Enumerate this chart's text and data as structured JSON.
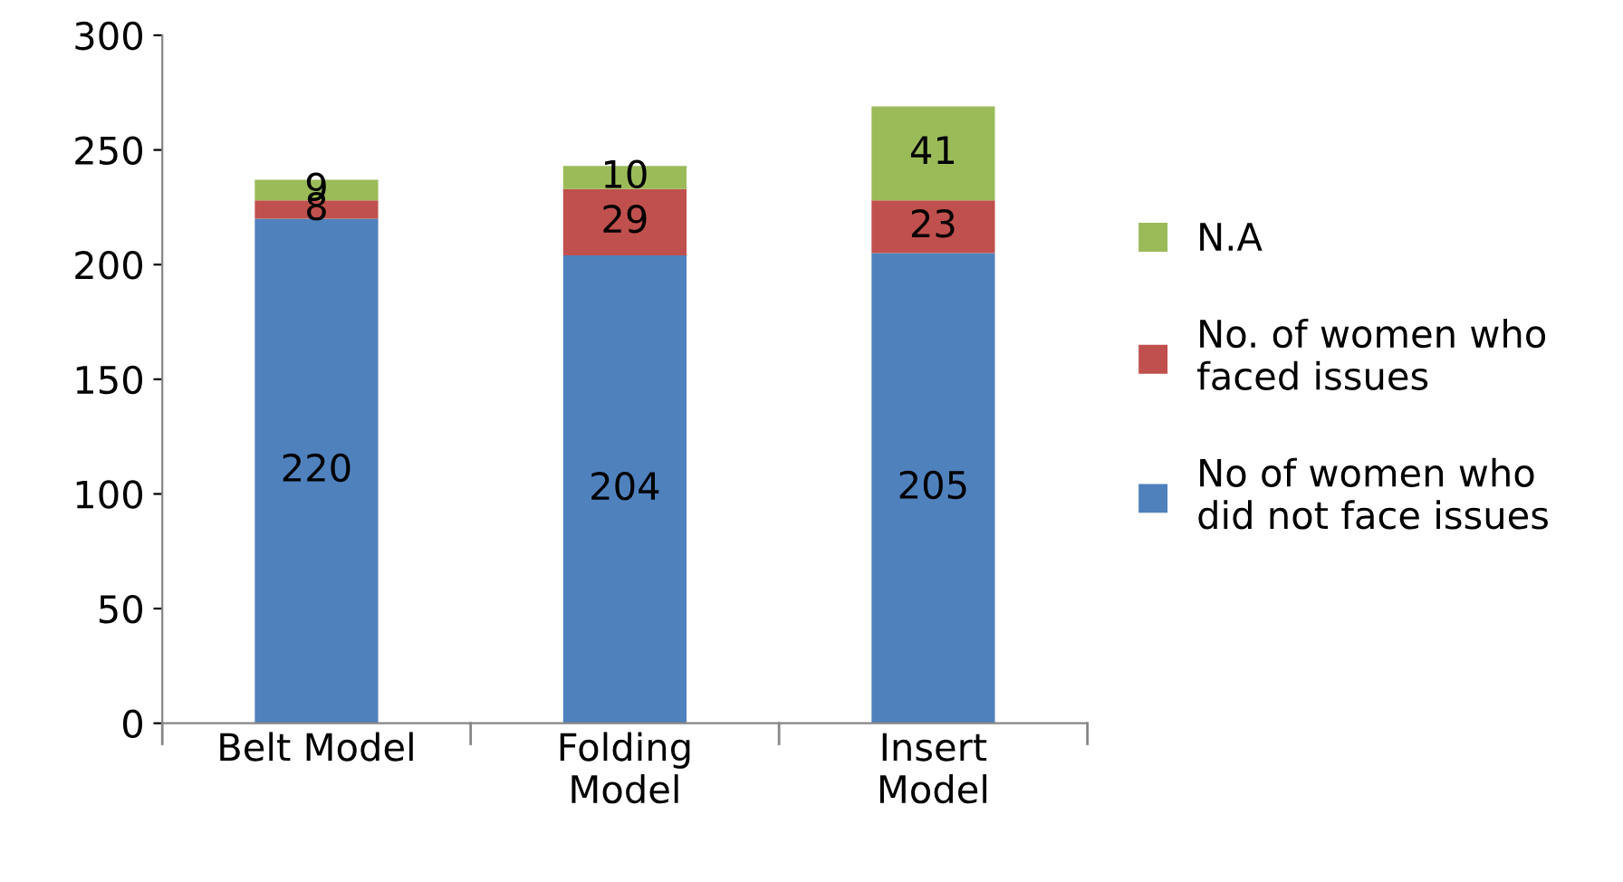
{
  "chart_data": {
    "type": "bar",
    "stacked": true,
    "categories": [
      "Belt Model",
      "Folding\nModel",
      "Insert\nModel"
    ],
    "series": [
      {
        "name": "No of women who\ndid not face issues",
        "color": "#4f81bd",
        "values": [
          220,
          204,
          205
        ]
      },
      {
        "name": "No. of women who\nfaced issues",
        "color": "#c0504d",
        "values": [
          8,
          29,
          23
        ]
      },
      {
        "name": "N.A",
        "color": "#9bbb59",
        "values": [
          9,
          10,
          41
        ]
      }
    ],
    "ylim": [
      0,
      300
    ],
    "yticks": [
      0,
      50,
      100,
      150,
      200,
      250,
      300
    ],
    "grid": false,
    "legend": "right",
    "data_labels": true
  }
}
